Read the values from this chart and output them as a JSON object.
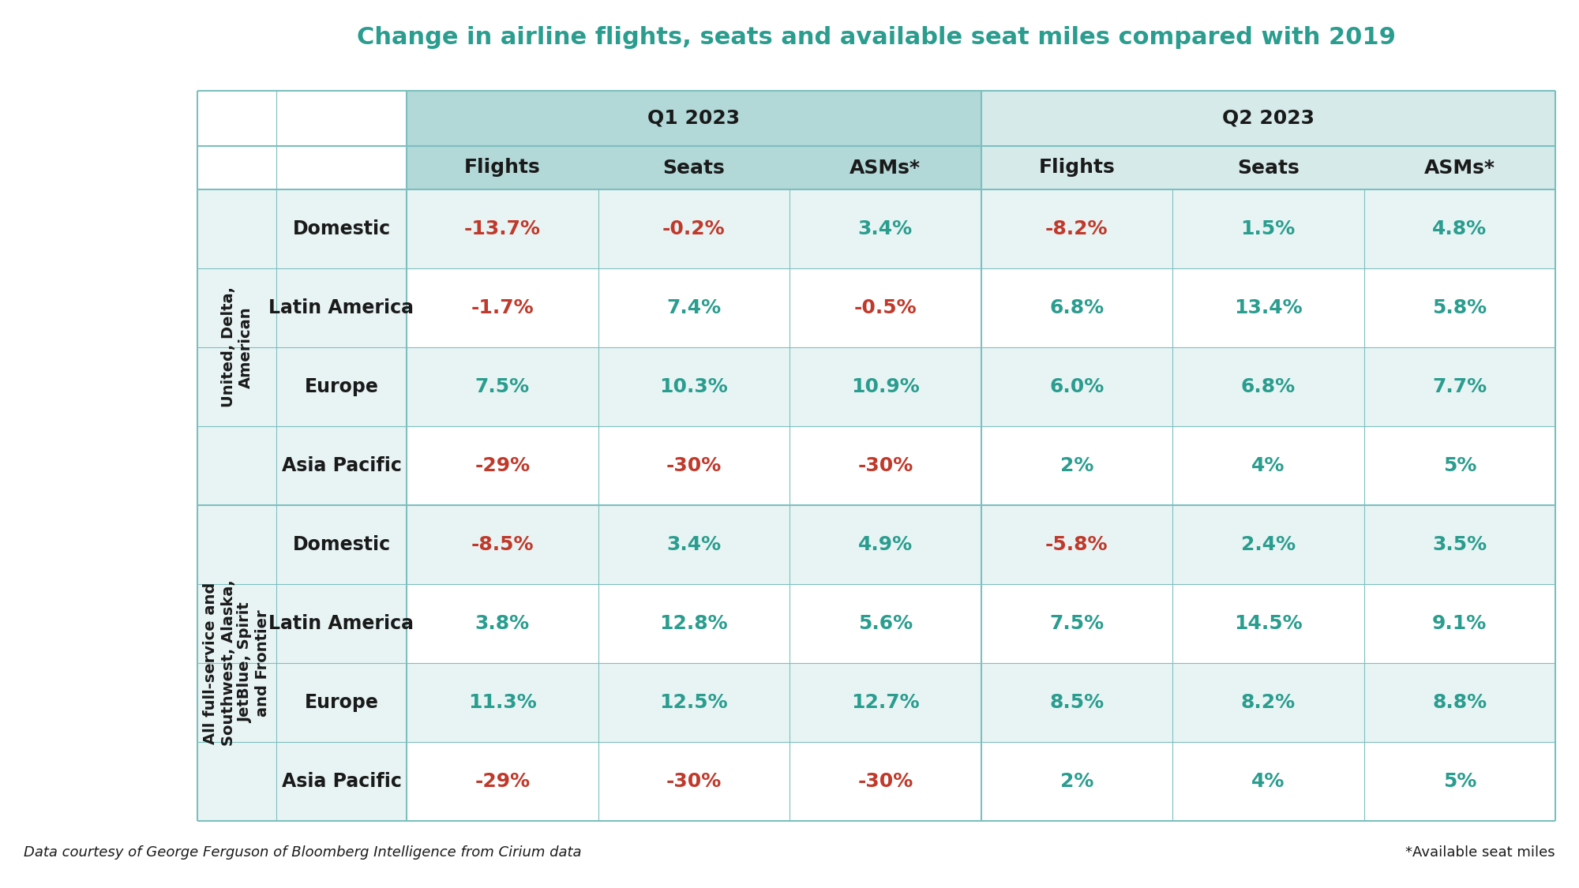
{
  "title": "Change in airline flights, seats and available seat miles compared with 2019",
  "title_color": "#2a9d8f",
  "title_fontsize": 22,
  "background_color": "#ffffff",
  "header_bg_dark": "#b2d8d8",
  "header_bg_light": "#d6eaea",
  "row_bg_light": "#e8f4f4",
  "row_bg_white": "#ffffff",
  "col_header_fontsize": 18,
  "data_fontsize": 18,
  "row_label_fontsize": 17,
  "group_label_fontsize": 14,
  "negative_color": "#c0392b",
  "positive_color": "#2a9d8f",
  "footer_left": "Data courtesy of George Ferguson of Bloomberg Intelligence from Cirium data",
  "footer_right": "*Available seat miles",
  "footer_fontsize": 13,
  "q1_header": "Q1 2023",
  "q2_header": "Q2 2023",
  "col_subheaders": [
    "Flights",
    "Seats",
    "ASMs*",
    "Flights",
    "Seats",
    "ASMs*"
  ],
  "group1_label": "United, Delta,\nAmerican",
  "group2_label": "All full-service and\nSouthwest, Alaska,\nJetBlue, Spirit\nand Frontier",
  "row_labels": [
    "Domestic",
    "Latin America",
    "Europe",
    "Asia Pacific",
    "Domestic",
    "Latin America",
    "Europe",
    "Asia Pacific"
  ],
  "table_data": [
    [
      "-13.7%",
      "-0.2%",
      "3.4%",
      "-8.2%",
      "1.5%",
      "4.8%"
    ],
    [
      "-1.7%",
      "7.4%",
      "-0.5%",
      "6.8%",
      "13.4%",
      "5.8%"
    ],
    [
      "7.5%",
      "10.3%",
      "10.9%",
      "6.0%",
      "6.8%",
      "7.7%"
    ],
    [
      "-29%",
      "-30%",
      "-30%",
      "2%",
      "4%",
      "5%"
    ],
    [
      "-8.5%",
      "3.4%",
      "4.9%",
      "-5.8%",
      "2.4%",
      "3.5%"
    ],
    [
      "3.8%",
      "12.8%",
      "5.6%",
      "7.5%",
      "14.5%",
      "9.1%"
    ],
    [
      "11.3%",
      "12.5%",
      "12.7%",
      "8.5%",
      "8.2%",
      "8.8%"
    ],
    [
      "-29%",
      "-30%",
      "-30%",
      "2%",
      "4%",
      "5%"
    ]
  ]
}
